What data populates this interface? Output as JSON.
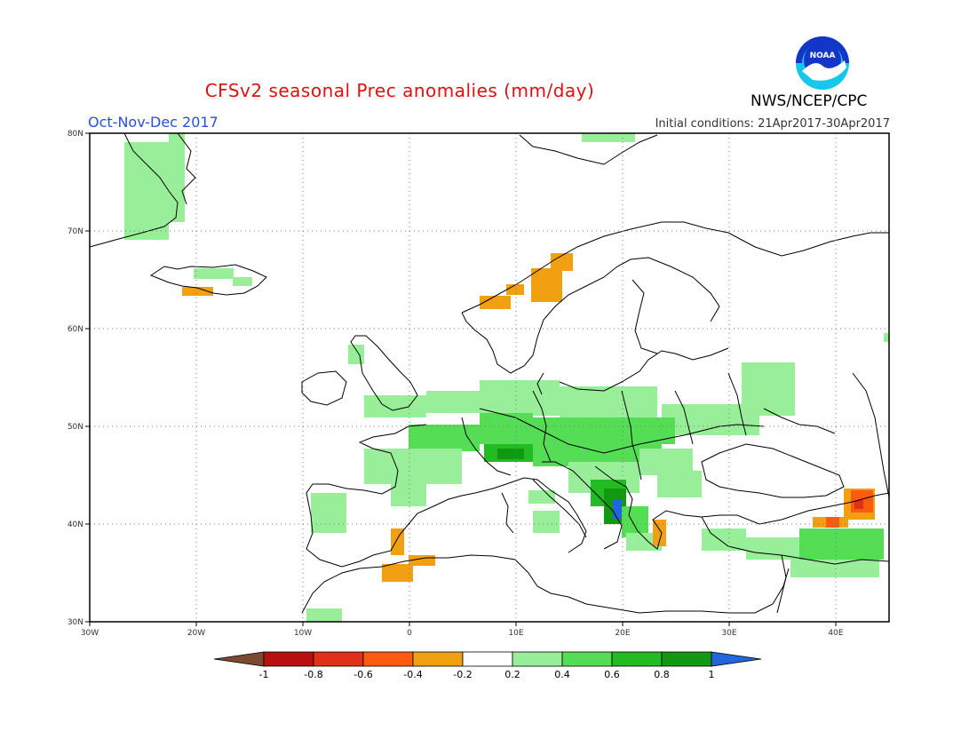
{
  "title": "CFSv2 seasonal Prec anomalies (mm/day)",
  "period": "Oct-Nov-Dec 2017",
  "initial_conditions": "Initial conditions: 21Apr2017-30Apr2017",
  "agency": "NWS/NCEP/CPC",
  "logo_text": "NOAA",
  "lon_labels": [
    "30W",
    "20W",
    "10W",
    "0",
    "10E",
    "20E",
    "30E",
    "40E"
  ],
  "lat_labels": [
    "80N",
    "70N",
    "60N",
    "50N",
    "40N",
    "30N"
  ],
  "colorbar": {
    "labels": [
      "-1",
      "-0.8",
      "-0.6",
      "-0.4",
      "-0.2",
      "0.2",
      "0.4",
      "0.6",
      "0.8",
      "1"
    ],
    "colors": [
      "#7a4a33",
      "#b81010",
      "#e0301a",
      "#ff5a10",
      "#f0a010",
      "#ffffff",
      "#99ee99",
      "#55dd55",
      "#22bb22",
      "#119911",
      "#2266dd"
    ]
  },
  "anomaly_colors": {
    "pos_light": "#99ee99",
    "pos_mid": "#55dd55",
    "pos_strong": "#22bb22",
    "pos_vstrong": "#119911",
    "pos_max": "#2266dd",
    "neg_light": "#f0a010",
    "neg_mid": "#ff5a10",
    "neg_strong": "#e0301a"
  }
}
